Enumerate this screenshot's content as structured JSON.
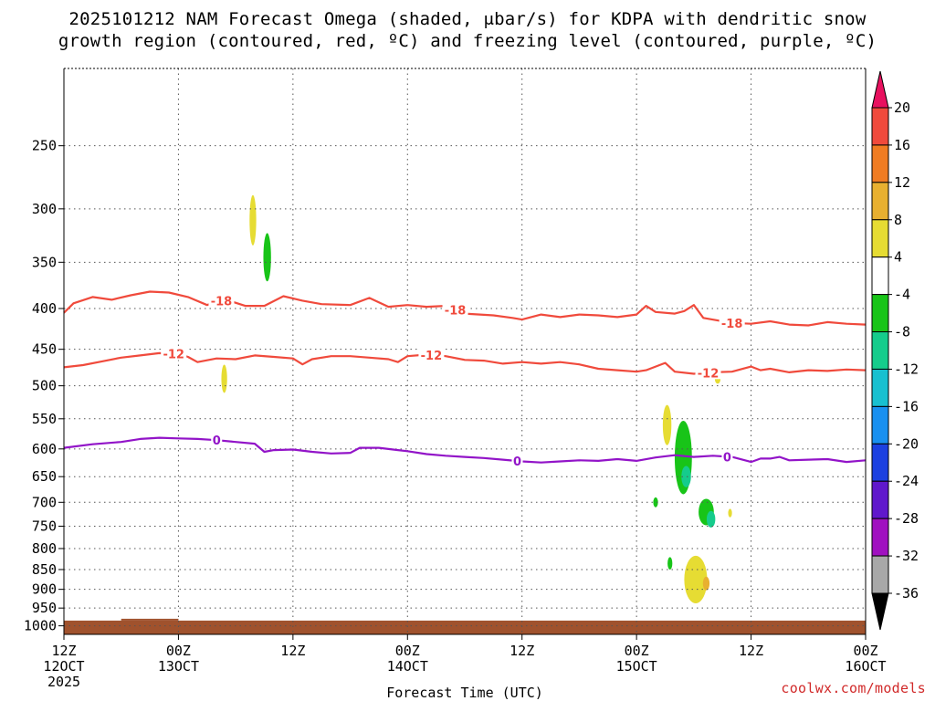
{
  "chart_data": {
    "type": "contour",
    "title_line1": "2025101212 NAM Forecast Omega (shaded, μbar/s) for KDPA with dendritic snow",
    "title_line2": "growth region (contoured, red, ºC) and freezing level (contoured, purple, ºC)",
    "xlabel": "Forecast Time (UTC)",
    "credit": "coolwx.com/models",
    "y_axis": {
      "kind": "pressure",
      "ticks": [
        250,
        300,
        350,
        400,
        450,
        500,
        550,
        600,
        650,
        700,
        750,
        800,
        850,
        900,
        950,
        1000
      ]
    },
    "x_axis": {
      "range_hours": [
        0,
        84
      ],
      "ticks": [
        {
          "h": 0,
          "top": "12Z",
          "mid": "12OCT",
          "bot": "2025"
        },
        {
          "h": 12,
          "top": "00Z",
          "mid": "13OCT",
          "bot": ""
        },
        {
          "h": 24,
          "top": "12Z",
          "mid": "",
          "bot": ""
        },
        {
          "h": 36,
          "top": "00Z",
          "mid": "14OCT",
          "bot": ""
        },
        {
          "h": 48,
          "top": "12Z",
          "mid": "",
          "bot": ""
        },
        {
          "h": 60,
          "top": "00Z",
          "mid": "15OCT",
          "bot": ""
        },
        {
          "h": 72,
          "top": "12Z",
          "mid": "",
          "bot": ""
        },
        {
          "h": 84,
          "top": "00Z",
          "mid": "16OCT",
          "bot": ""
        }
      ]
    },
    "colorbar": {
      "labels": [
        "20",
        "16",
        "12",
        "8",
        "4",
        "-4",
        "-8",
        "-12",
        "-16",
        "-20",
        "-24",
        "-28",
        "-32",
        "-36"
      ],
      "colors": [
        "#e8115f",
        "#f04a3c",
        "#f07c22",
        "#e8b030",
        "#e6dc33",
        "#ffffff",
        "#18c418",
        "#15cc8c",
        "#18c0d0",
        "#1990f0",
        "#1c40e0",
        "#6018cc",
        "#a010c0",
        "#a8a8a8",
        "#000000"
      ]
    },
    "series": [
      {
        "name": "-18",
        "color": "#f04a3c",
        "label_h": [
          16.5,
          41,
          70
        ],
        "points": [
          [
            0,
            405
          ],
          [
            1,
            394
          ],
          [
            3,
            387
          ],
          [
            5,
            390
          ],
          [
            7,
            385
          ],
          [
            9,
            381
          ],
          [
            11,
            382
          ],
          [
            13,
            387
          ],
          [
            15,
            396
          ],
          [
            16,
            392
          ],
          [
            17,
            390
          ],
          [
            19,
            397
          ],
          [
            21,
            397
          ],
          [
            23,
            386
          ],
          [
            25,
            391
          ],
          [
            27,
            395
          ],
          [
            30,
            396
          ],
          [
            32,
            388
          ],
          [
            34,
            398
          ],
          [
            36,
            396
          ],
          [
            38,
            398
          ],
          [
            40,
            397
          ],
          [
            42,
            406
          ],
          [
            45,
            408
          ],
          [
            47,
            411
          ],
          [
            48,
            413
          ],
          [
            50,
            407
          ],
          [
            52,
            410
          ],
          [
            54,
            407
          ],
          [
            56,
            408
          ],
          [
            58,
            410
          ],
          [
            60,
            407
          ],
          [
            61,
            397
          ],
          [
            62,
            404
          ],
          [
            64,
            406
          ],
          [
            65,
            403
          ],
          [
            66,
            396
          ],
          [
            67,
            411
          ],
          [
            70,
            417
          ],
          [
            72,
            418
          ],
          [
            74,
            415
          ],
          [
            76,
            419
          ],
          [
            78,
            420
          ],
          [
            80,
            416
          ],
          [
            82,
            418
          ],
          [
            84,
            419
          ]
        ]
      },
      {
        "name": "-12",
        "color": "#f04a3c",
        "label_h": [
          11.5,
          38.5,
          67.5
        ],
        "points": [
          [
            0,
            474
          ],
          [
            2,
            471
          ],
          [
            4,
            466
          ],
          [
            6,
            461
          ],
          [
            8,
            458
          ],
          [
            10,
            455
          ],
          [
            12,
            456
          ],
          [
            13,
            460
          ],
          [
            14,
            467
          ],
          [
            16,
            462
          ],
          [
            18,
            463
          ],
          [
            20,
            458
          ],
          [
            22,
            460
          ],
          [
            24,
            462
          ],
          [
            25,
            470
          ],
          [
            26,
            463
          ],
          [
            28,
            459
          ],
          [
            30,
            459
          ],
          [
            32,
            461
          ],
          [
            34,
            463
          ],
          [
            35,
            467
          ],
          [
            36,
            459
          ],
          [
            38,
            457
          ],
          [
            40,
            459
          ],
          [
            42,
            464
          ],
          [
            44,
            465
          ],
          [
            46,
            469
          ],
          [
            48,
            467
          ],
          [
            50,
            469
          ],
          [
            52,
            467
          ],
          [
            54,
            470
          ],
          [
            56,
            476
          ],
          [
            58,
            478
          ],
          [
            60,
            480
          ],
          [
            61,
            478
          ],
          [
            63,
            468
          ],
          [
            64,
            480
          ],
          [
            66,
            483
          ],
          [
            68,
            481
          ],
          [
            70,
            480
          ],
          [
            72,
            473
          ],
          [
            73,
            478
          ],
          [
            74,
            476
          ],
          [
            76,
            481
          ],
          [
            78,
            478
          ],
          [
            80,
            479
          ],
          [
            82,
            477
          ],
          [
            84,
            478
          ]
        ]
      },
      {
        "name": "0",
        "color": "#9214c8",
        "label_h": [
          16,
          47.5,
          69.5
        ],
        "points": [
          [
            0,
            598
          ],
          [
            3,
            592
          ],
          [
            6,
            588
          ],
          [
            8,
            583
          ],
          [
            10,
            581
          ],
          [
            12,
            582
          ],
          [
            14,
            583
          ],
          [
            16,
            585
          ],
          [
            18,
            588
          ],
          [
            20,
            591
          ],
          [
            21,
            605
          ],
          [
            22,
            602
          ],
          [
            24,
            601
          ],
          [
            26,
            605
          ],
          [
            28,
            608
          ],
          [
            30,
            607
          ],
          [
            31,
            598
          ],
          [
            33,
            598
          ],
          [
            35,
            602
          ],
          [
            36,
            604
          ],
          [
            38,
            609
          ],
          [
            40,
            612
          ],
          [
            42,
            614
          ],
          [
            44,
            616
          ],
          [
            46,
            619
          ],
          [
            48,
            622
          ],
          [
            50,
            624
          ],
          [
            52,
            622
          ],
          [
            54,
            620
          ],
          [
            56,
            621
          ],
          [
            58,
            618
          ],
          [
            60,
            621
          ],
          [
            62,
            615
          ],
          [
            64,
            611
          ],
          [
            66,
            614
          ],
          [
            68,
            612
          ],
          [
            70,
            614
          ],
          [
            72,
            623
          ],
          [
            73,
            617
          ],
          [
            74,
            617
          ],
          [
            75,
            614
          ],
          [
            76,
            620
          ],
          [
            78,
            619
          ],
          [
            80,
            618
          ],
          [
            82,
            623
          ],
          [
            84,
            620
          ]
        ]
      }
    ],
    "omega_regions": [
      {
        "color": "#e6dc33",
        "center_h": 19.8,
        "center_p": 310,
        "w_h": 0.35,
        "h_p": 45
      },
      {
        "color": "#18c418",
        "center_h": 21.3,
        "center_p": 345,
        "w_h": 0.4,
        "h_p": 48
      },
      {
        "color": "#e6dc33",
        "center_h": 16.8,
        "center_p": 490,
        "w_h": 0.3,
        "h_p": 40
      },
      {
        "color": "#e6dc33",
        "center_h": 63.2,
        "center_p": 560,
        "w_h": 0.45,
        "h_p": 65
      },
      {
        "color": "#e6dc33",
        "center_h": 68.5,
        "center_p": 490,
        "w_h": 0.3,
        "h_p": 14
      },
      {
        "color": "#18c418",
        "center_h": 64.9,
        "center_p": 615,
        "w_h": 0.9,
        "h_p": 130
      },
      {
        "color": "#15cc8c",
        "center_h": 65.2,
        "center_p": 650,
        "w_h": 0.5,
        "h_p": 40
      },
      {
        "color": "#18c418",
        "center_h": 67.3,
        "center_p": 720,
        "w_h": 0.8,
        "h_p": 55
      },
      {
        "color": "#15cc8c",
        "center_h": 67.8,
        "center_p": 735,
        "w_h": 0.45,
        "h_p": 35
      },
      {
        "color": "#18c418",
        "center_h": 62.0,
        "center_p": 700,
        "w_h": 0.25,
        "h_p": 20
      },
      {
        "color": "#e6dc33",
        "center_h": 69.8,
        "center_p": 722,
        "w_h": 0.2,
        "h_p": 18
      },
      {
        "color": "#18c418",
        "center_h": 63.5,
        "center_p": 835,
        "w_h": 0.25,
        "h_p": 30
      },
      {
        "color": "#e6dc33",
        "center_h": 66.2,
        "center_p": 875,
        "w_h": 1.2,
        "h_p": 120
      },
      {
        "color": "#e8b030",
        "center_h": 67.3,
        "center_p": 885,
        "w_h": 0.35,
        "h_p": 35
      }
    ],
    "surface": {
      "color": "#a0522d",
      "pressure": 985
    }
  }
}
